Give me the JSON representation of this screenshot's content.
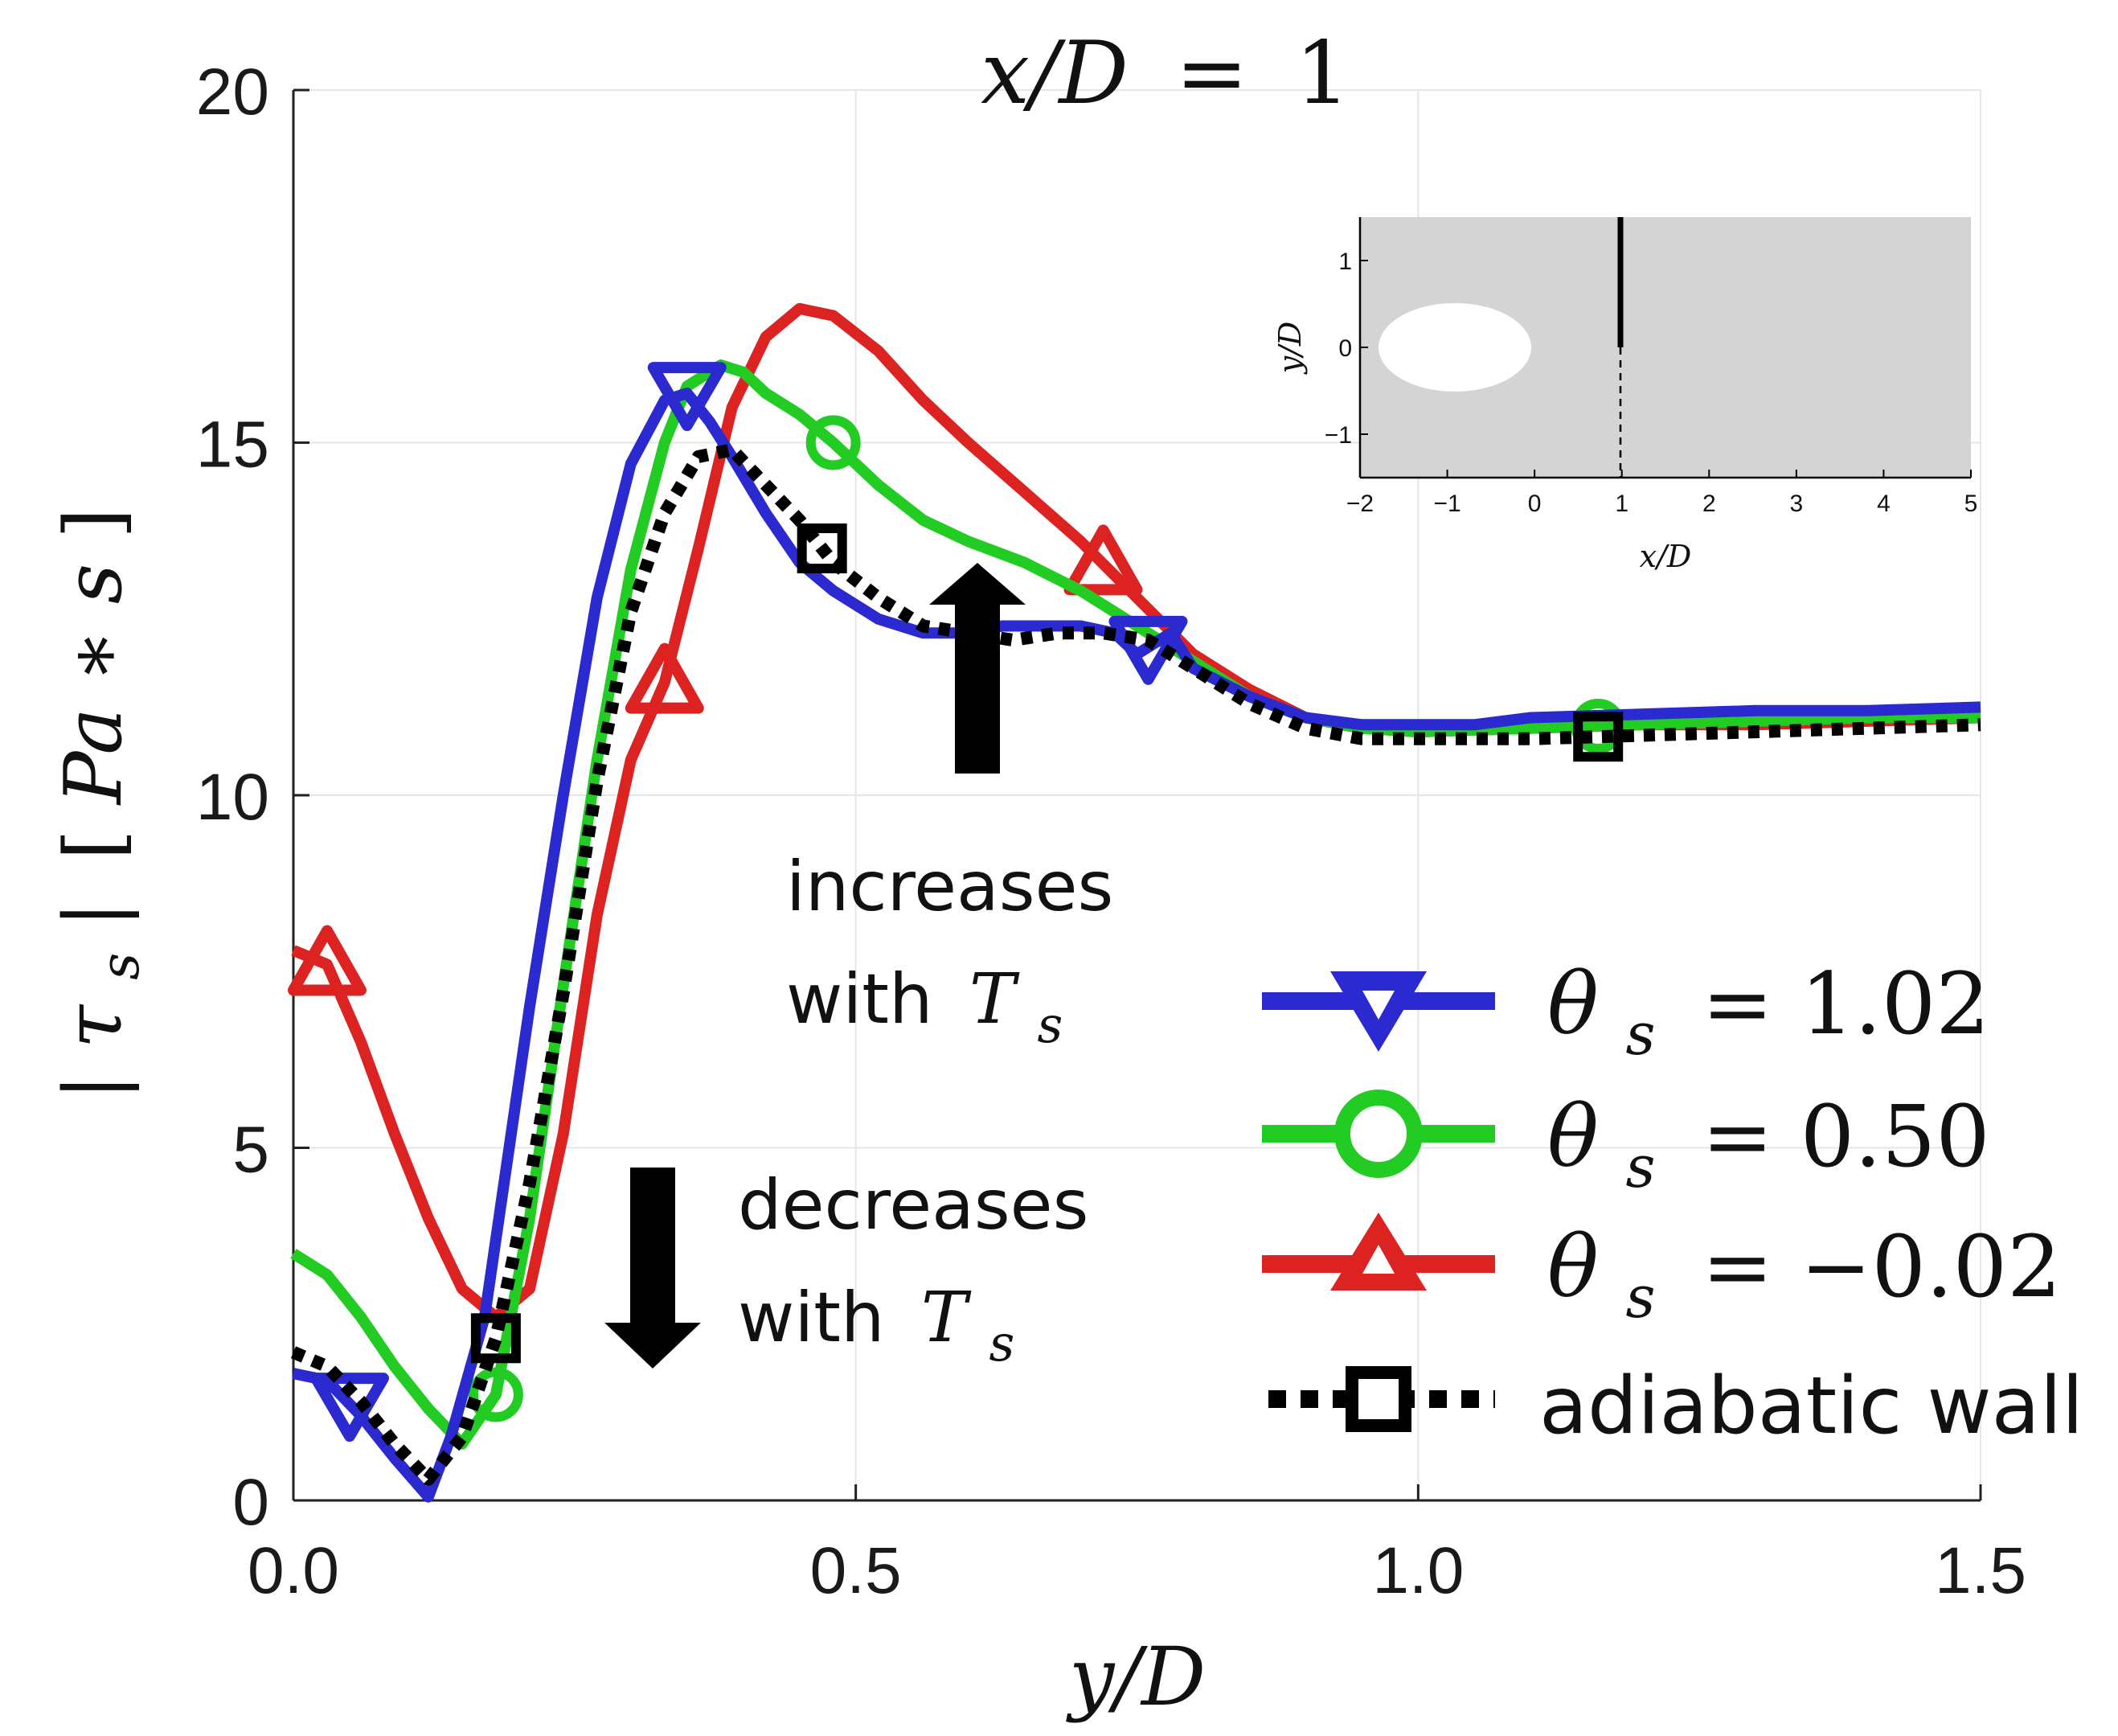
{
  "chart_data": {
    "type": "line",
    "title": "x/D = 1",
    "title_parts": {
      "lhs": "x/D",
      "eq": "=",
      "rhs": "1"
    },
    "xlabel": "y/D",
    "ylabel_parts": {
      "abs_l": "|",
      "tau": "τ",
      "sub": "s",
      "abs_r": "|",
      "unit_l": "[",
      "unit": "Pa ∗ s",
      "unit_r": "]"
    },
    "xlim": [
      0,
      1.5
    ],
    "ylim": [
      0,
      20
    ],
    "x_ticks": [
      0,
      0.5,
      1,
      1.5
    ],
    "x_tick_labels": [
      "0.0",
      "0.5",
      "1.0",
      "1.5"
    ],
    "y_ticks": [
      0,
      5,
      10,
      15,
      20
    ],
    "y_tick_labels": [
      "0",
      "5",
      "10",
      "15",
      "20"
    ],
    "grid": true,
    "legend_position": "bottom-right",
    "series": [
      {
        "name": "θs = 1.02",
        "legend_lhs": "θ",
        "legend_sub": "s",
        "legend_rhs": "= 1.02",
        "color": "#2a2ad0",
        "marker": "triangle-down",
        "dashed": false,
        "x": [
          0,
          0.03,
          0.06,
          0.09,
          0.12,
          0.14,
          0.17,
          0.19,
          0.21,
          0.24,
          0.27,
          0.3,
          0.33,
          0.35,
          0.37,
          0.39,
          0.42,
          0.45,
          0.48,
          0.52,
          0.56,
          0.6,
          0.63,
          0.67,
          0.7,
          0.73,
          0.75,
          0.78,
          0.8,
          0.85,
          0.9,
          0.95,
          1.0,
          1.05,
          1.1,
          1.2,
          1.3,
          1.4,
          1.5
        ],
        "y": [
          1.8,
          1.7,
          1.2,
          0.6,
          0.05,
          0.9,
          2.6,
          4.8,
          7.0,
          10.0,
          12.8,
          14.7,
          15.6,
          15.7,
          15.3,
          14.8,
          14.0,
          13.3,
          12.9,
          12.5,
          12.3,
          12.3,
          12.4,
          12.4,
          12.4,
          12.3,
          12.0,
          12.3,
          11.8,
          11.4,
          11.1,
          11.0,
          11.0,
          11.0,
          11.1,
          11.15,
          11.2,
          11.2,
          11.25
        ],
        "marker_x": [
          0.05,
          0.35,
          0.76
        ]
      },
      {
        "name": "θs = 0.50",
        "legend_lhs": "θ",
        "legend_sub": "s",
        "legend_rhs": "= 0.50",
        "color": "#22cc22",
        "marker": "circle",
        "dashed": false,
        "x": [
          0,
          0.03,
          0.06,
          0.09,
          0.12,
          0.15,
          0.18,
          0.21,
          0.24,
          0.27,
          0.3,
          0.33,
          0.35,
          0.38,
          0.4,
          0.42,
          0.45,
          0.48,
          0.52,
          0.56,
          0.6,
          0.65,
          0.7,
          0.75,
          0.8,
          0.85,
          0.9,
          0.95,
          1.0,
          1.1,
          1.2,
          1.3,
          1.4,
          1.5
        ],
        "y": [
          3.5,
          3.2,
          2.6,
          1.9,
          1.3,
          0.8,
          1.5,
          4.0,
          7.3,
          10.5,
          13.2,
          15.0,
          15.8,
          16.1,
          16.0,
          15.7,
          15.4,
          15.0,
          14.4,
          13.9,
          13.6,
          13.3,
          12.9,
          12.4,
          11.9,
          11.4,
          11.1,
          10.95,
          10.9,
          10.95,
          11.0,
          11.05,
          11.1,
          11.1
        ],
        "marker_x": [
          0.18,
          0.48,
          1.16
        ]
      },
      {
        "name": "θs = −0.02",
        "legend_lhs": "θ",
        "legend_sub": "s",
        "legend_rhs": "= −0.02",
        "color": "#dd2222",
        "marker": "triangle-up",
        "dashed": false,
        "x": [
          0,
          0.03,
          0.06,
          0.09,
          0.12,
          0.15,
          0.18,
          0.21,
          0.24,
          0.27,
          0.3,
          0.33,
          0.36,
          0.39,
          0.42,
          0.45,
          0.48,
          0.52,
          0.56,
          0.6,
          0.65,
          0.7,
          0.75,
          0.8,
          0.85,
          0.9,
          0.95,
          1.0,
          1.1,
          1.2,
          1.3,
          1.4,
          1.5
        ],
        "y": [
          7.8,
          7.6,
          6.5,
          5.2,
          4.0,
          3.0,
          2.6,
          3.0,
          5.2,
          8.3,
          10.5,
          11.6,
          13.5,
          15.5,
          16.5,
          16.9,
          16.8,
          16.3,
          15.6,
          15.0,
          14.3,
          13.6,
          12.8,
          12.0,
          11.5,
          11.1,
          10.95,
          10.9,
          10.95,
          11.0,
          11.0,
          11.05,
          11.1
        ],
        "marker_x": [
          0.03,
          0.33,
          0.72
        ]
      },
      {
        "name": "adiabatic wall",
        "legend_text": "adiabatic wall",
        "color": "#000000",
        "marker": "square",
        "dashed": true,
        "x": [
          0,
          0.03,
          0.06,
          0.09,
          0.12,
          0.15,
          0.18,
          0.21,
          0.24,
          0.27,
          0.3,
          0.33,
          0.36,
          0.39,
          0.42,
          0.45,
          0.48,
          0.52,
          0.56,
          0.6,
          0.64,
          0.68,
          0.72,
          0.76,
          0.8,
          0.85,
          0.9,
          0.95,
          1.0,
          1.1,
          1.2,
          1.3,
          1.4,
          1.5
        ],
        "y": [
          2.1,
          1.9,
          1.4,
          0.8,
          0.3,
          0.9,
          2.3,
          4.5,
          7.2,
          10.2,
          12.6,
          14.0,
          14.8,
          14.9,
          14.4,
          13.9,
          13.3,
          12.8,
          12.4,
          12.3,
          12.2,
          12.3,
          12.3,
          12.2,
          11.8,
          11.3,
          10.95,
          10.8,
          10.8,
          10.8,
          10.85,
          10.9,
          10.95,
          11.0
        ],
        "marker_x": [
          0.18,
          0.47,
          1.16
        ]
      }
    ],
    "annotations": [
      {
        "line1": "increases",
        "line2_word": "with",
        "T": "T",
        "sub": "s",
        "arrow": "up"
      },
      {
        "line1": "decreases",
        "line2_word": "with",
        "T": "T",
        "sub": "s",
        "arrow": "down"
      }
    ],
    "inset": {
      "xlabel": "x/D",
      "ylabel": "y/D",
      "xlim": [
        -2,
        5
      ],
      "ylim": [
        -1.5,
        1.5
      ],
      "x_ticks": [
        -2,
        -1,
        0,
        1,
        2,
        3,
        4,
        5
      ],
      "x_tick_labels": [
        "−2",
        "−1",
        "0",
        "1",
        "2",
        "3",
        "4",
        "5"
      ],
      "y_ticks": [
        1,
        0,
        -1
      ],
      "y_tick_labels": [
        "1",
        "0",
        "−1"
      ],
      "background": "#d4d4d4",
      "ellipse_color": "#ffffff",
      "ellipse_center": [
        -0.9,
        0
      ],
      "ellipse_radii": [
        0.9,
        0.5
      ],
      "line_x": 1,
      "solid_y": [
        0,
        1.5
      ],
      "dashed_y": [
        -1.5,
        0
      ]
    }
  }
}
